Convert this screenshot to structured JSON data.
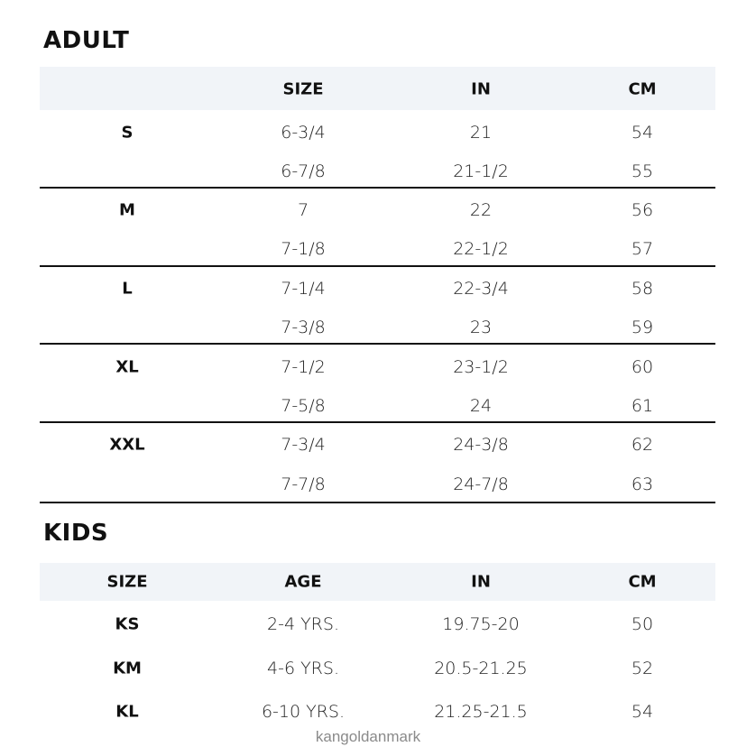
{
  "adult": {
    "title": "ADULT",
    "headers": [
      "",
      "SIZE",
      "IN",
      "CM"
    ],
    "groups": [
      {
        "label": "S",
        "rows": [
          [
            "6-3/4",
            "21",
            "54"
          ],
          [
            "6-7/8",
            "21-1/2",
            "55"
          ]
        ]
      },
      {
        "label": "M",
        "rows": [
          [
            "7",
            "22",
            "56"
          ],
          [
            "7-1/8",
            "22-1/2",
            "57"
          ]
        ]
      },
      {
        "label": "L",
        "rows": [
          [
            "7-1/4",
            "22-3/4",
            "58"
          ],
          [
            "7-3/8",
            "23",
            "59"
          ]
        ]
      },
      {
        "label": "XL",
        "rows": [
          [
            "7-1/2",
            "23-1/2",
            "60"
          ],
          [
            "7-5/8",
            "24",
            "61"
          ]
        ]
      },
      {
        "label": "XXL",
        "rows": [
          [
            "7-3/4",
            "24-3/8",
            "62"
          ],
          [
            "7-7/8",
            "24-7/8",
            "63"
          ]
        ]
      }
    ]
  },
  "kids": {
    "title": "KIDS",
    "headers": [
      "SIZE",
      "AGE",
      "IN",
      "CM"
    ],
    "rows": [
      [
        "KS",
        "2-4 YRS.",
        "19.75-20",
        "50"
      ],
      [
        "KM",
        "4-6 YRS.",
        "20.5-21.25",
        "52"
      ],
      [
        "KL",
        "6-10 YRS.",
        "21.25-21.5",
        "54"
      ]
    ]
  },
  "watermark": "kangoldanmark",
  "colors": {
    "header_band": "#f1f4f8",
    "rule": "#111111"
  }
}
